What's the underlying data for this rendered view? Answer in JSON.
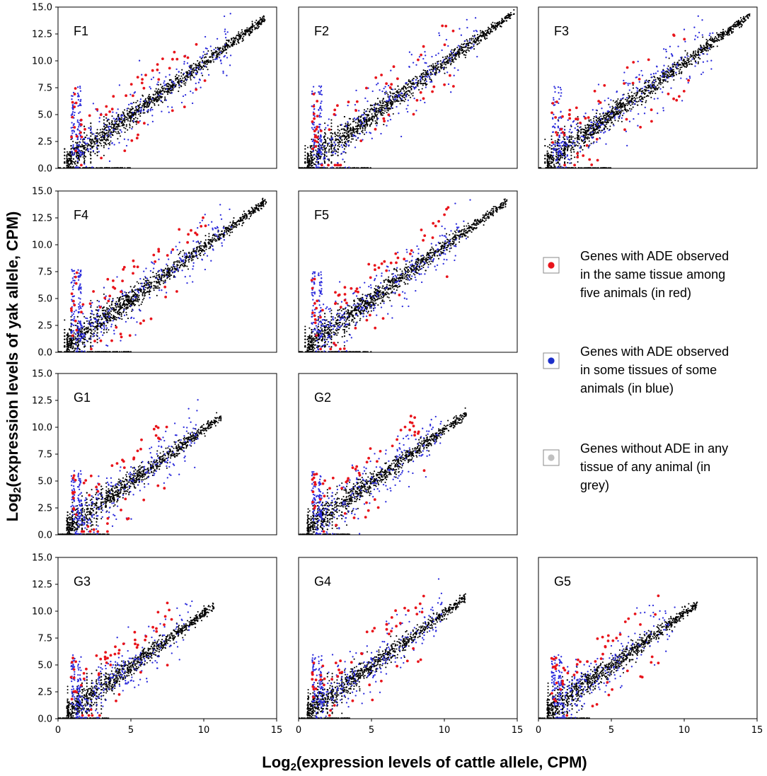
{
  "chart_data": {
    "type": "scatter",
    "ylabel": "Log2(expression levels of yak allele, CPM)",
    "xlabel": "Log2(expression levels of cattle allele, CPM)",
    "ylabel_parts": [
      "Log",
      "2",
      "(expression levels of yak allele, CPM)"
    ],
    "xlabel_parts": [
      "Log",
      "2",
      "(expression levels of cattle allele, CPM)"
    ],
    "xlim": [
      0,
      15
    ],
    "ylim": [
      0,
      15
    ],
    "x_ticks": [
      "0",
      "5",
      "10",
      "15"
    ],
    "y_ticks": [
      "0.0",
      "2.5",
      "5.0",
      "7.5",
      "10.0",
      "12.5",
      "15.0"
    ],
    "series_colors": {
      "red": "#e8141b",
      "blue": "#2b2bdc",
      "black": "#000000"
    },
    "panels": [
      {
        "label": "F1",
        "max_expr": 14.2,
        "n_red": 55,
        "n_blue": 330,
        "n_black": 1500
      },
      {
        "label": "F2",
        "max_expr": 14.8,
        "n_red": 60,
        "n_blue": 340,
        "n_black": 1500
      },
      {
        "label": "F3",
        "max_expr": 14.5,
        "n_red": 55,
        "n_blue": 330,
        "n_black": 1500
      },
      {
        "label": "F4",
        "max_expr": 14.3,
        "n_red": 60,
        "n_blue": 340,
        "n_black": 1500
      },
      {
        "label": "F5",
        "max_expr": 14.3,
        "n_red": 65,
        "n_blue": 350,
        "n_black": 1500
      },
      {
        "label": "G1",
        "max_expr": 11.2,
        "n_red": 50,
        "n_blue": 300,
        "n_black": 1200
      },
      {
        "label": "G2",
        "max_expr": 11.5,
        "n_red": 55,
        "n_blue": 300,
        "n_black": 1200
      },
      {
        "label": "G3",
        "max_expr": 10.7,
        "n_red": 55,
        "n_blue": 300,
        "n_black": 1200
      },
      {
        "label": "G4",
        "max_expr": 11.5,
        "n_red": 55,
        "n_blue": 300,
        "n_black": 1200
      },
      {
        "label": "G5",
        "max_expr": 10.9,
        "n_red": 55,
        "n_blue": 300,
        "n_black": 1200
      }
    ],
    "legend": [
      {
        "color": "#e8141b",
        "lines": [
          "Genes with ADE observed",
          "in the same tissue among",
          "five animals (in red)"
        ]
      },
      {
        "color": "#1c2fc9",
        "lines": [
          "Genes with ADE observed",
          "in some tissues of some",
          "animals (in blue)"
        ]
      },
      {
        "color": "#c0c0c0",
        "lines": [
          "Genes without ADE in any",
          "tissue of any animal (in",
          "grey)"
        ]
      }
    ]
  }
}
